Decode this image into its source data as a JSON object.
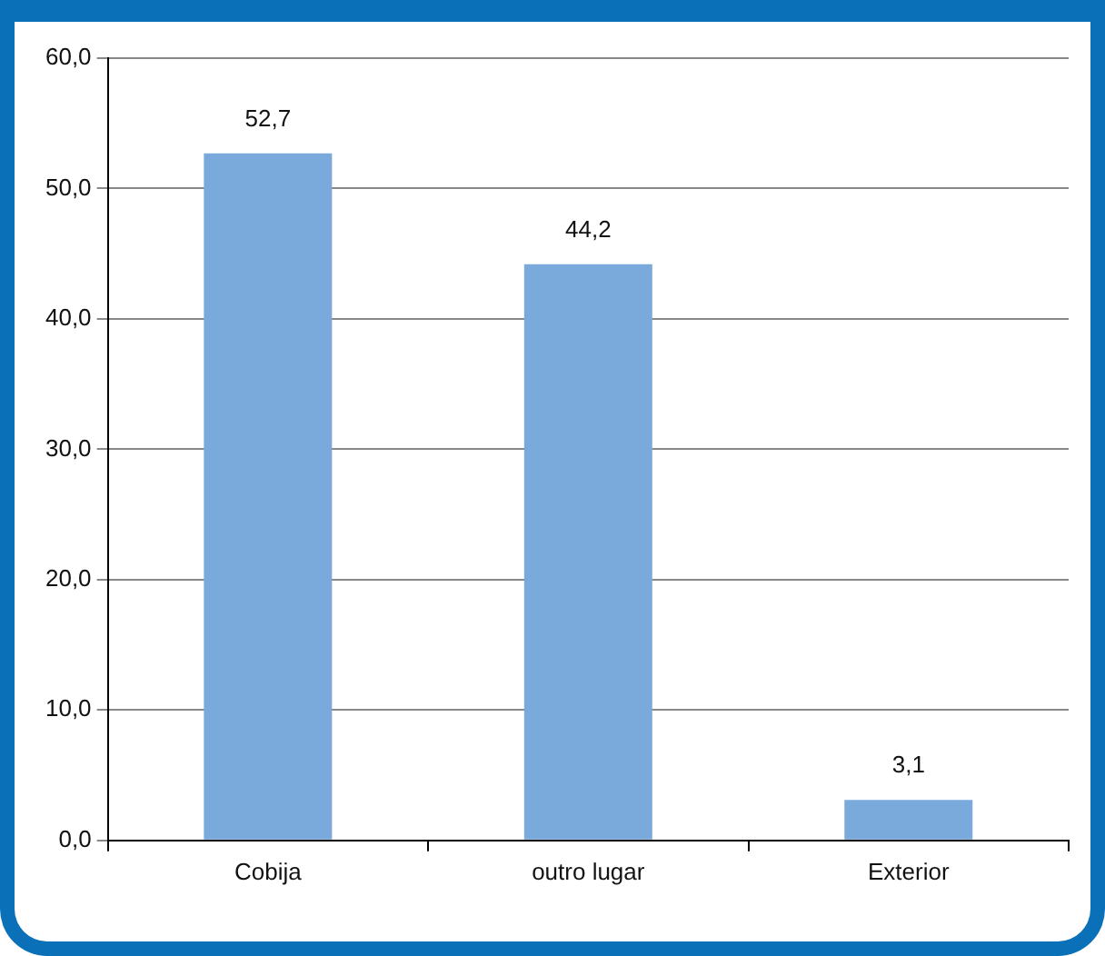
{
  "chart_data": {
    "type": "bar",
    "categories": [
      "Cobija",
      "outro lugar",
      "Exterior"
    ],
    "values": [
      52.7,
      44.2,
      3.1
    ],
    "value_labels": [
      "52,7",
      "44,2",
      "3,1"
    ],
    "color": "#7aaadc",
    "ylim": [
      0,
      60
    ],
    "yticks": [
      {
        "value": 0,
        "label": "0,0"
      },
      {
        "value": 10,
        "label": "10,0"
      },
      {
        "value": 20,
        "label": "20,0"
      },
      {
        "value": 30,
        "label": "30,0"
      },
      {
        "value": 40,
        "label": "40,0"
      },
      {
        "value": 50,
        "label": "50,0"
      },
      {
        "value": 60,
        "label": "60,0"
      }
    ],
    "grid": "y",
    "legend": false
  }
}
